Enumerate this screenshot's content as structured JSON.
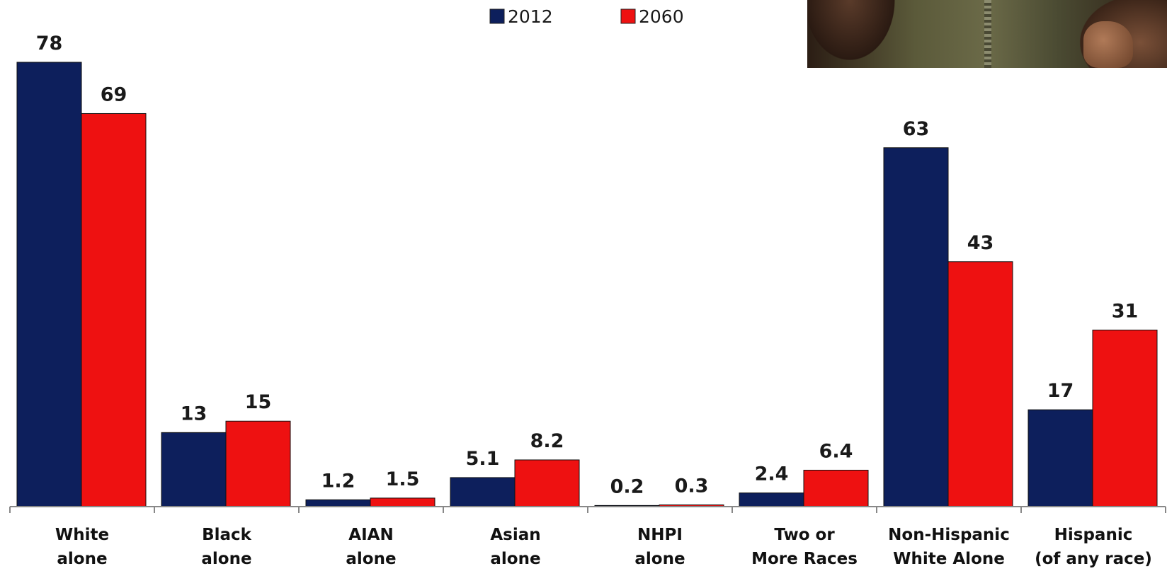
{
  "legend": {
    "items": [
      {
        "label": "2012",
        "color": "#0d1f5c"
      },
      {
        "label": "2060",
        "color": "#ee1111"
      }
    ]
  },
  "chart_data": {
    "type": "bar",
    "categories": [
      [
        "White",
        "alone"
      ],
      [
        "Black",
        "alone"
      ],
      [
        "AIAN",
        "alone"
      ],
      [
        "Asian",
        "alone"
      ],
      [
        "NHPI",
        "alone"
      ],
      [
        "Two or",
        "More Races"
      ],
      [
        "Non-Hispanic",
        "White Alone"
      ],
      [
        "Hispanic",
        "(of any race)"
      ]
    ],
    "series": [
      {
        "name": "2012",
        "color": "#0d1f5c",
        "values": [
          78,
          13,
          1.2,
          5.1,
          0.2,
          2.4,
          63,
          17
        ],
        "labels": [
          "78",
          "13",
          "1.2",
          "5.1",
          "0.2",
          "2.4",
          "63",
          "17"
        ]
      },
      {
        "name": "2060",
        "color": "#ee1111",
        "values": [
          69,
          15,
          1.5,
          8.2,
          0.3,
          6.4,
          43,
          31
        ],
        "labels": [
          "69",
          "15",
          "1.5",
          "8.2",
          "0.3",
          "6.4",
          "43",
          "31"
        ]
      }
    ],
    "ylim": [
      0,
      78
    ],
    "grid": false,
    "legend_position": "top-center"
  },
  "photo": {
    "icon": "photo-crop-people"
  }
}
